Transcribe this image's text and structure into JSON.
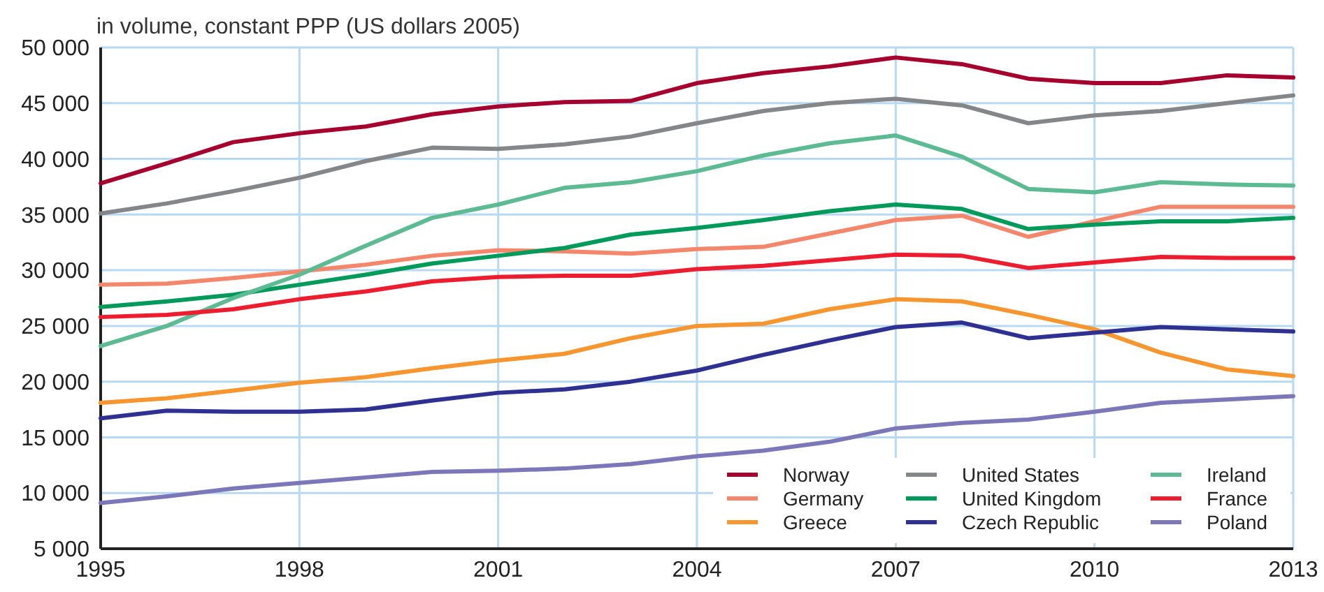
{
  "chart_data": {
    "type": "line",
    "subtitle": "in volume, constant PPP (US dollars 2005)",
    "x": [
      1995,
      1996,
      1997,
      1998,
      1999,
      2000,
      2001,
      2002,
      2003,
      2004,
      2005,
      2006,
      2007,
      2008,
      2009,
      2010,
      2011,
      2012,
      2013
    ],
    "xlim": [
      1995,
      2013
    ],
    "xticks": [
      1995,
      1998,
      2001,
      2004,
      2007,
      2010,
      2013
    ],
    "ylim": [
      5000,
      50000
    ],
    "yticks": [
      {
        "value": 5000,
        "label": "5 000"
      },
      {
        "value": 10000,
        "label": "10 000"
      },
      {
        "value": 15000,
        "label": "15 000"
      },
      {
        "value": 20000,
        "label": "20 000"
      },
      {
        "value": 25000,
        "label": "25 000"
      },
      {
        "value": 30000,
        "label": "30 000"
      },
      {
        "value": 35000,
        "label": "35 000"
      },
      {
        "value": 40000,
        "label": "40 000"
      },
      {
        "value": 45000,
        "label": "45 000"
      },
      {
        "value": 50000,
        "label": "50 000"
      }
    ],
    "grid": true,
    "legend": "bottom right",
    "marker": "none",
    "line_style": "solid",
    "series": [
      {
        "name": "Norway",
        "color": "#a6002e",
        "values": [
          37800,
          39600,
          41500,
          42300,
          42900,
          44000,
          44700,
          45100,
          45200,
          46800,
          47700,
          48300,
          49100,
          48500,
          47200,
          46800,
          46800,
          47500,
          47300
        ]
      },
      {
        "name": "Germany",
        "color": "#f4876b",
        "values": [
          28700,
          28800,
          29300,
          29900,
          30500,
          31300,
          31800,
          31700,
          31500,
          31900,
          32100,
          33300,
          34500,
          34900,
          33000,
          34400,
          35700,
          35700,
          35700
        ]
      },
      {
        "name": "Greece",
        "color": "#f7952e",
        "values": [
          18100,
          18500,
          19200,
          19900,
          20400,
          21200,
          21900,
          22500,
          23900,
          25000,
          25200,
          26500,
          27400,
          27200,
          26000,
          24700,
          22600,
          21100,
          20500
        ]
      },
      {
        "name": "United States",
        "color": "#85868a",
        "values": [
          35100,
          36000,
          37100,
          38300,
          39800,
          41000,
          40900,
          41300,
          42000,
          43200,
          44300,
          45000,
          45400,
          44800,
          43200,
          43900,
          44300,
          45000,
          45700
        ]
      },
      {
        "name": "United Kingdom",
        "color": "#009a5b",
        "values": [
          26700,
          27200,
          27800,
          28700,
          29600,
          30600,
          31300,
          32000,
          33200,
          33800,
          34500,
          35300,
          35900,
          35500,
          33700,
          34100,
          34400,
          34400,
          34700
        ]
      },
      {
        "name": "Czech Republic",
        "color": "#2e3192",
        "values": [
          16700,
          17400,
          17300,
          17300,
          17500,
          18300,
          19000,
          19300,
          20000,
          21000,
          22400,
          23700,
          24900,
          25300,
          23900,
          24400,
          24900,
          24700,
          24500
        ]
      },
      {
        "name": "Ireland",
        "color": "#5dbb93",
        "values": [
          23200,
          25000,
          27500,
          29600,
          32200,
          34700,
          35900,
          37400,
          37900,
          38900,
          40300,
          41400,
          42100,
          40200,
          37300,
          37000,
          37900,
          37700,
          37600
        ]
      },
      {
        "name": "France",
        "color": "#ed1c2e",
        "values": [
          25800,
          26000,
          26500,
          27400,
          28100,
          29000,
          29400,
          29500,
          29500,
          30100,
          30400,
          30900,
          31400,
          31300,
          30200,
          30700,
          31200,
          31100,
          31100
        ]
      },
      {
        "name": "Poland",
        "color": "#7b77b8",
        "values": [
          9100,
          9700,
          10400,
          10900,
          11400,
          11900,
          12000,
          12200,
          12600,
          13300,
          13800,
          14600,
          15800,
          16300,
          16600,
          17300,
          18100,
          18400,
          18700
        ]
      }
    ]
  }
}
